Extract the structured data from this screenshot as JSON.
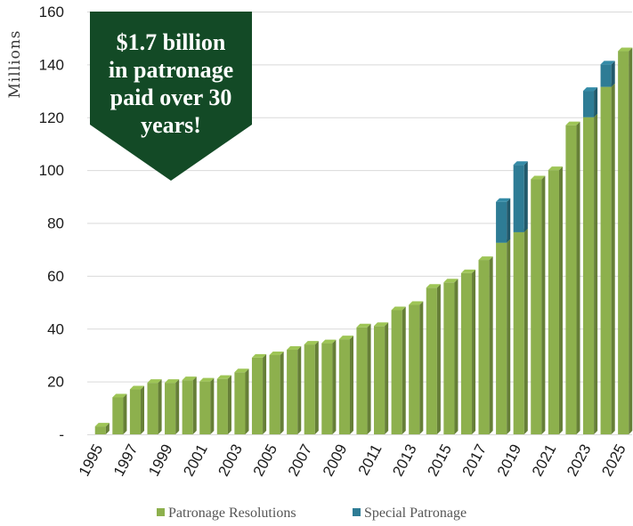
{
  "chart_data": {
    "type": "bar",
    "stacked": true,
    "ylabel": "Millions",
    "ylim": [
      0,
      160
    ],
    "yticks": [
      0,
      20,
      40,
      60,
      80,
      100,
      120,
      140,
      160
    ],
    "ytick_labels": [
      "-",
      "20",
      "40",
      "60",
      "80",
      "100",
      "120",
      "140",
      "160"
    ],
    "categories": [
      "1995",
      "1996",
      "1997",
      "1998",
      "1999",
      "2000",
      "2001",
      "2002",
      "2003",
      "2004",
      "2005",
      "2006",
      "2007",
      "2008",
      "2009",
      "2010",
      "2011",
      "2012",
      "2013",
      "2014",
      "2015",
      "2016",
      "2017",
      "2018",
      "2019",
      "2020",
      "2021",
      "2022",
      "2023",
      "2024",
      "2025"
    ],
    "xtick_labels_shown": [
      "1995",
      "1997",
      "1999",
      "2001",
      "2003",
      "2005",
      "2007",
      "2009",
      "2011",
      "2013",
      "2015",
      "2017",
      "2019",
      "2021",
      "2023",
      "2025"
    ],
    "grid": true,
    "legend_position": "bottom",
    "series": [
      {
        "name": "Patronage Resolutions",
        "color": "#8db04d",
        "values": [
          3,
          14,
          17,
          19.5,
          19.5,
          20.5,
          20,
          21,
          23.5,
          29,
          30,
          32,
          34,
          34.5,
          36,
          40.5,
          41,
          47,
          49,
          55.5,
          57.5,
          61,
          66,
          72.5,
          76.5,
          96.5,
          100,
          117,
          120,
          131.5,
          145
        ]
      },
      {
        "name": "Special Patronage",
        "color": "#2e7c95",
        "values": [
          0,
          0,
          0,
          0,
          0,
          0,
          0,
          0,
          0,
          0,
          0,
          0,
          0,
          0,
          0,
          0,
          0,
          0,
          0,
          0,
          0,
          0,
          0,
          15.5,
          25.5,
          0,
          0,
          0,
          10,
          8.5,
          0
        ]
      }
    ],
    "callout": {
      "lines": [
        "$1.7 billion",
        "in patronage",
        "paid over 30",
        "years!"
      ],
      "color": "#134a26"
    }
  }
}
